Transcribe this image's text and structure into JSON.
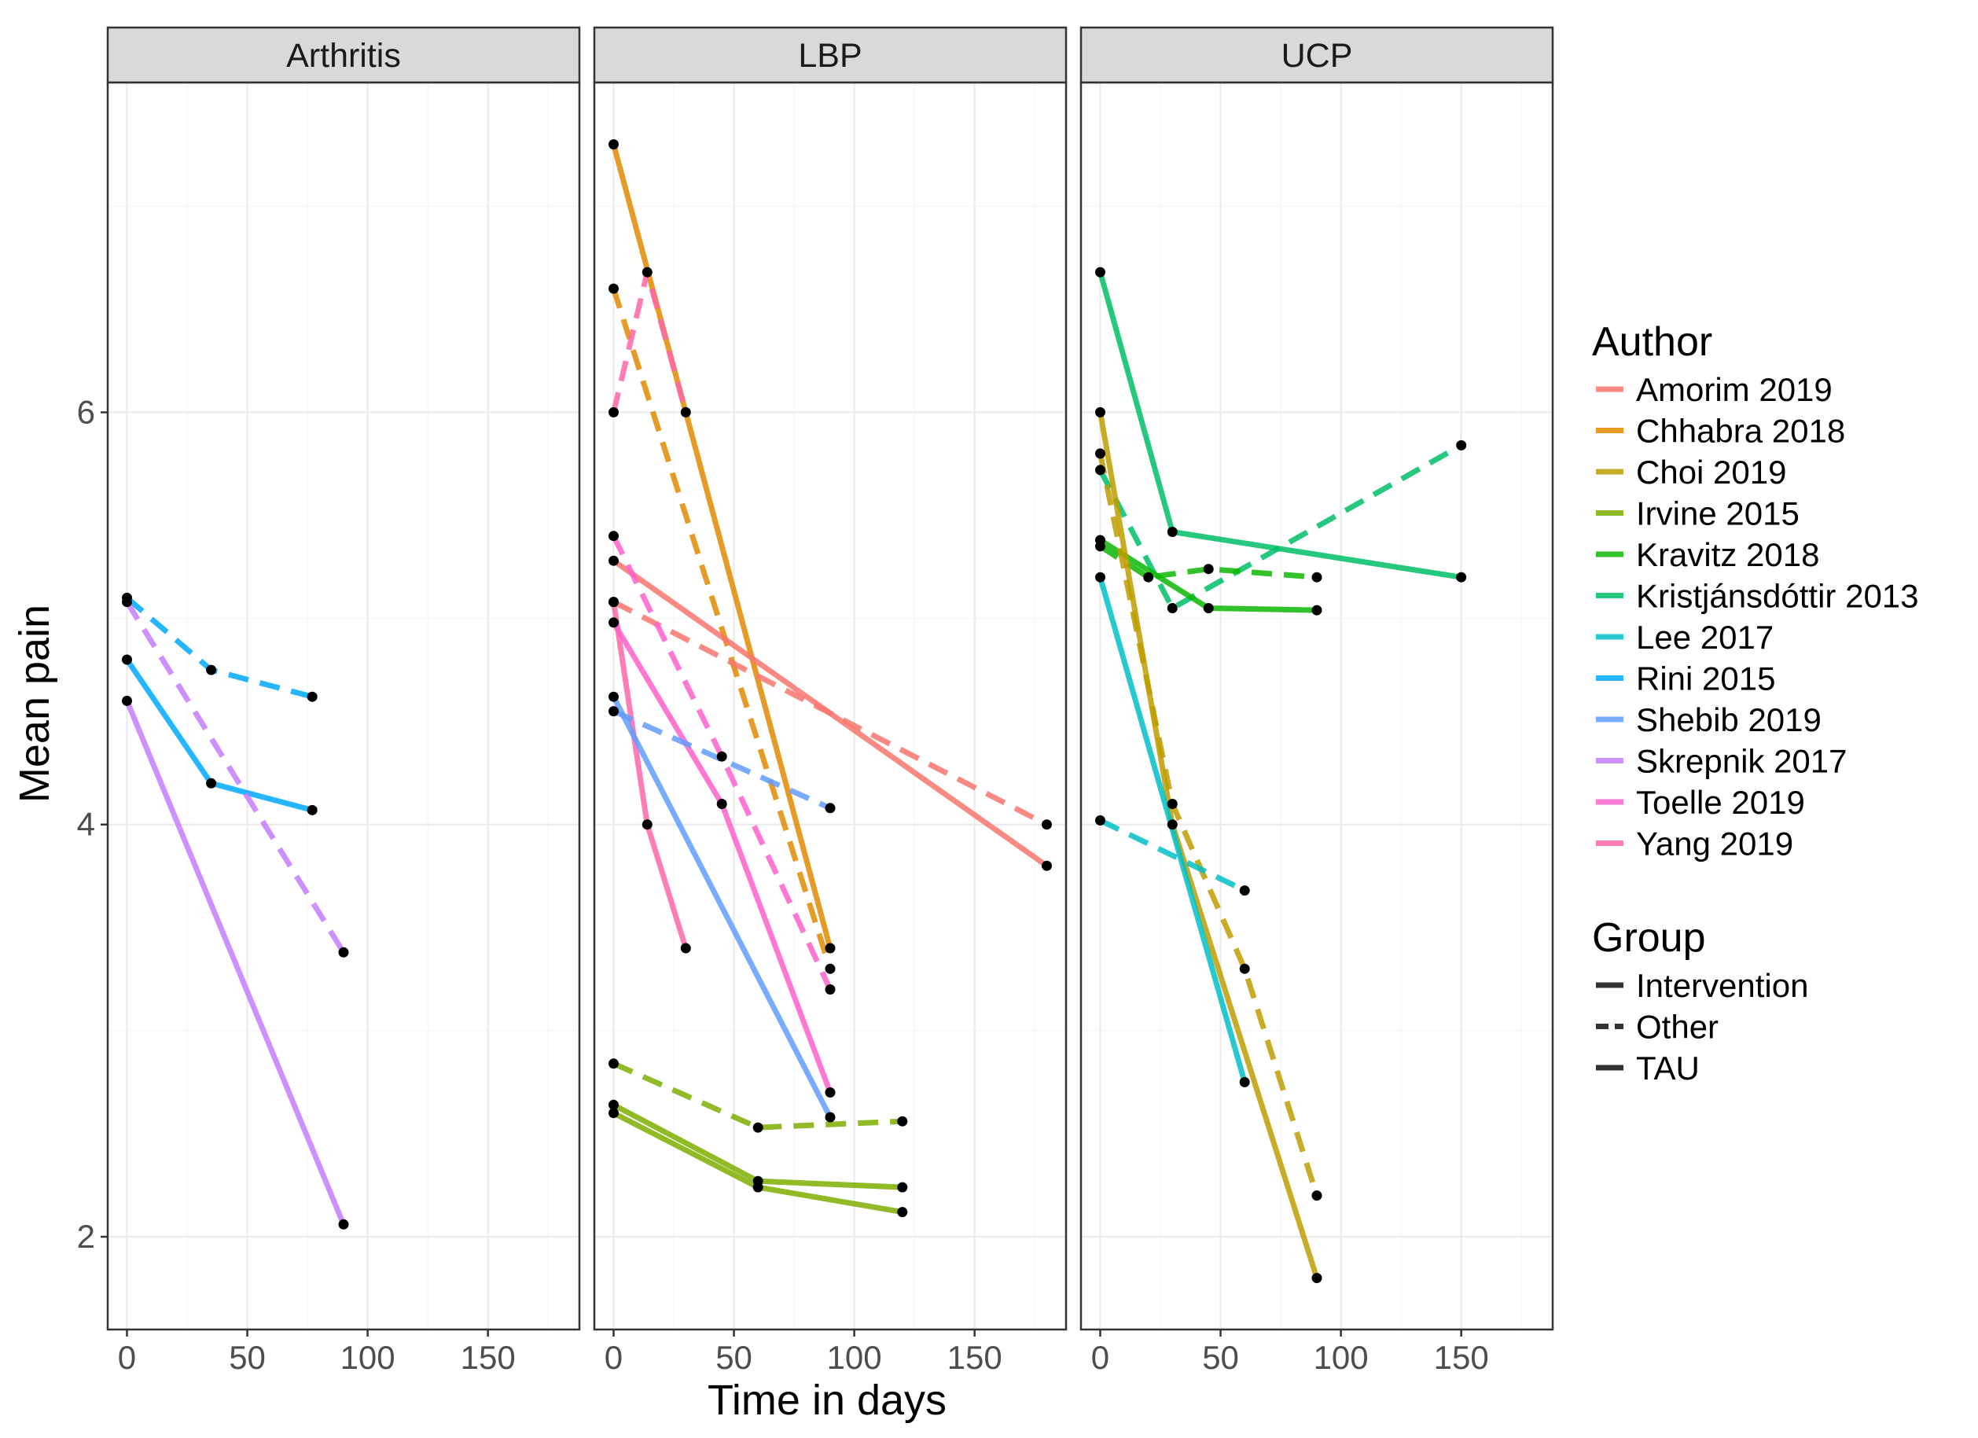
{
  "chart_data": {
    "type": "line",
    "facets": [
      "Arthritis",
      "LBP",
      "UCP"
    ],
    "xlabel": "Time in days",
    "ylabel": "Mean pain",
    "xlim": [
      -8,
      188
    ],
    "ylim": [
      1.55,
      7.6
    ],
    "x_ticks": [
      0,
      50,
      100,
      150
    ],
    "x_tick_labels": [
      "0",
      "50",
      "100",
      "150"
    ],
    "y_ticks": [
      2,
      4,
      6
    ],
    "y_tick_labels": [
      "2",
      "4",
      "6"
    ],
    "grid": true,
    "legend_position": "right",
    "legend": {
      "author_title": "Author",
      "group_title": "Group",
      "authors": [
        {
          "name": "Amorim 2019",
          "color": "#F8766D"
        },
        {
          "name": "Chhabra 2018",
          "color": "#E18A00"
        },
        {
          "name": "Choi 2019",
          "color": "#BE9C00"
        },
        {
          "name": "Irvine 2015",
          "color": "#7CAE00"
        },
        {
          "name": "Kravitz 2018",
          "color": "#0CB702"
        },
        {
          "name": "Kristjánsdóttir 2013",
          "color": "#00BE67"
        },
        {
          "name": "Lee 2017",
          "color": "#00BFC4"
        },
        {
          "name": "Rini 2015",
          "color": "#00A9FF"
        },
        {
          "name": "Shebib 2019",
          "color": "#619CFF"
        },
        {
          "name": "Skrepnik 2017",
          "color": "#C77CFF"
        },
        {
          "name": "Toelle 2019",
          "color": "#FF61CC"
        },
        {
          "name": "Yang 2019",
          "color": "#FF66A8"
        }
      ],
      "groups": [
        {
          "name": "Intervention",
          "dash": "solid"
        },
        {
          "name": "Other",
          "dash": "dashed"
        },
        {
          "name": "TAU",
          "dash": "solid"
        }
      ]
    },
    "series": [
      {
        "facet": "Arthritis",
        "author": "Rini 2015",
        "group": "Intervention",
        "x": [
          0,
          35,
          77
        ],
        "y": [
          4.8,
          4.2,
          4.07
        ]
      },
      {
        "facet": "Arthritis",
        "author": "Rini 2015",
        "group": "Other",
        "x": [
          0,
          35,
          77
        ],
        "y": [
          5.1,
          4.75,
          4.62
        ]
      },
      {
        "facet": "Arthritis",
        "author": "Skrepnik 2017",
        "group": "Intervention",
        "x": [
          0,
          90
        ],
        "y": [
          4.6,
          2.06
        ]
      },
      {
        "facet": "Arthritis",
        "author": "Skrepnik 2017",
        "group": "Other",
        "x": [
          0,
          90
        ],
        "y": [
          5.08,
          3.38
        ]
      },
      {
        "facet": "LBP",
        "author": "Chhabra 2018",
        "group": "Intervention",
        "x": [
          0,
          90
        ],
        "y": [
          7.3,
          3.4
        ]
      },
      {
        "facet": "LBP",
        "author": "Chhabra 2018",
        "group": "Other",
        "x": [
          0,
          90
        ],
        "y": [
          6.6,
          3.3
        ]
      },
      {
        "facet": "LBP",
        "author": "Yang 2019",
        "group": "Intervention",
        "x": [
          0,
          14,
          30
        ],
        "y": [
          5.08,
          4.0,
          3.4
        ]
      },
      {
        "facet": "LBP",
        "author": "Yang 2019",
        "group": "Other",
        "x": [
          0,
          14,
          30
        ],
        "y": [
          6.0,
          6.68,
          6.0
        ]
      },
      {
        "facet": "LBP",
        "author": "Amorim 2019",
        "group": "Intervention",
        "x": [
          0,
          180
        ],
        "y": [
          5.28,
          3.8
        ]
      },
      {
        "facet": "LBP",
        "author": "Amorim 2019",
        "group": "Other",
        "x": [
          0,
          180
        ],
        "y": [
          5.08,
          4.0
        ]
      },
      {
        "facet": "LBP",
        "author": "Toelle 2019",
        "group": "Intervention",
        "x": [
          0,
          45,
          90
        ],
        "y": [
          4.98,
          4.1,
          2.7
        ]
      },
      {
        "facet": "LBP",
        "author": "Toelle 2019",
        "group": "Other",
        "x": [
          0,
          45,
          90
        ],
        "y": [
          5.4,
          4.33,
          3.2
        ]
      },
      {
        "facet": "LBP",
        "author": "Shebib 2019",
        "group": "Intervention",
        "x": [
          0,
          90
        ],
        "y": [
          4.62,
          2.58
        ]
      },
      {
        "facet": "LBP",
        "author": "Shebib 2019",
        "group": "Other",
        "x": [
          0,
          90
        ],
        "y": [
          4.55,
          4.08
        ]
      },
      {
        "facet": "LBP",
        "author": "Irvine 2015",
        "group": "Intervention",
        "x": [
          0,
          60,
          120
        ],
        "y": [
          2.6,
          2.24,
          2.12
        ]
      },
      {
        "facet": "LBP",
        "author": "Irvine 2015",
        "group": "Other",
        "x": [
          0,
          60,
          120
        ],
        "y": [
          2.84,
          2.53,
          2.56
        ]
      },
      {
        "facet": "LBP",
        "author": "Irvine 2015",
        "group": "TAU",
        "x": [
          0,
          60,
          120
        ],
        "y": [
          2.64,
          2.27,
          2.24
        ]
      },
      {
        "facet": "UCP",
        "author": "Kristjánsdóttir 2013",
        "group": "Intervention",
        "x": [
          0,
          30,
          150
        ],
        "y": [
          6.68,
          5.42,
          5.2
        ]
      },
      {
        "facet": "UCP",
        "author": "Kristjánsdóttir 2013",
        "group": "Other",
        "x": [
          0,
          30,
          150
        ],
        "y": [
          5.72,
          5.05,
          5.84
        ]
      },
      {
        "facet": "UCP",
        "author": "Kravitz 2018",
        "group": "Intervention",
        "x": [
          0,
          45,
          90
        ],
        "y": [
          5.38,
          5.05,
          5.04
        ]
      },
      {
        "facet": "UCP",
        "author": "Kravitz 2018",
        "group": "Other",
        "x": [
          0,
          20,
          45,
          90
        ],
        "y": [
          5.35,
          5.2,
          5.24,
          5.2
        ]
      },
      {
        "facet": "UCP",
        "author": "Choi 2019",
        "group": "Intervention",
        "x": [
          0,
          30,
          90
        ],
        "y": [
          6.0,
          4.0,
          1.8
        ]
      },
      {
        "facet": "UCP",
        "author": "Choi 2019",
        "group": "Other",
        "x": [
          0,
          30,
          60,
          90
        ],
        "y": [
          5.8,
          4.1,
          3.3,
          2.2
        ]
      },
      {
        "facet": "UCP",
        "author": "Lee 2017",
        "group": "Intervention",
        "x": [
          0,
          60
        ],
        "y": [
          5.2,
          2.75
        ]
      },
      {
        "facet": "UCP",
        "author": "Lee 2017",
        "group": "Other",
        "x": [
          0,
          60
        ],
        "y": [
          4.02,
          3.68
        ]
      }
    ]
  }
}
